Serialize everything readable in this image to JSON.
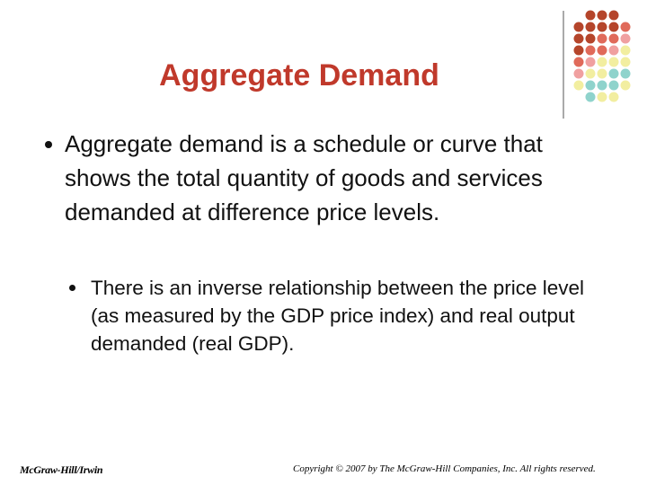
{
  "slide": {
    "title": "Aggregate Demand",
    "bullets": [
      {
        "text": "Aggregate demand is a schedule or curve that shows the total quantity of goods and services demanded at difference price levels.",
        "sub_bullets": [
          "There is an inverse relationship between the price level (as measured by the GDP price index) and real output demanded (real GDP)."
        ]
      }
    ],
    "footer_left": "McGraw-Hill/Irwin",
    "footer_right": "Copyright © 2007 by The McGraw-Hill Companies, Inc. All rights reserved."
  }
}
